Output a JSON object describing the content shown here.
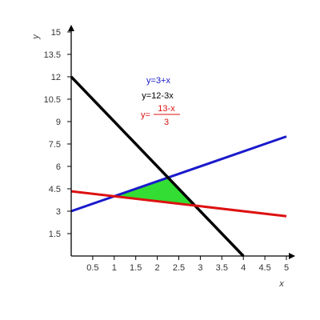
{
  "chart_data": {
    "type": "line",
    "xlabel": "x",
    "ylabel": "y",
    "xlim": [
      0,
      5
    ],
    "ylim": [
      0,
      15
    ],
    "x_ticks": [
      "0.5",
      "1",
      "1.5",
      "2",
      "2.5",
      "3",
      "3.5",
      "4",
      "4.5",
      "5"
    ],
    "y_ticks": [
      "1.5",
      "3",
      "4.5",
      "6",
      "7.5",
      "9",
      "10.5",
      "12",
      "13.5",
      "15"
    ],
    "grid": false,
    "series": [
      {
        "name": "y=3+x",
        "color": "#1a1acc",
        "x": [
          0,
          5
        ],
        "y": [
          3,
          8
        ]
      },
      {
        "name": "y=12-3x",
        "color": "#000000",
        "x": [
          0,
          4
        ],
        "y": [
          12,
          0
        ]
      },
      {
        "name": "y=(13-x)/3",
        "color": "#dd1111",
        "x": [
          0,
          5
        ],
        "y": [
          4.333,
          2.667
        ]
      }
    ],
    "shaded_region": {
      "color": "#33dd33",
      "vertices": [
        [
          1,
          4
        ],
        [
          2.25,
          5.25
        ],
        [
          2.875,
          3.375
        ]
      ]
    },
    "legend": {
      "placement": "top-center",
      "entries": [
        {
          "text": "y=3+x",
          "color": "#1a1acc"
        },
        {
          "text": "y=12-3x",
          "color": "#000000"
        },
        {
          "prefix": "y=",
          "numerator": "13-x",
          "denominator": "3",
          "color": "#dd1111"
        }
      ]
    }
  }
}
